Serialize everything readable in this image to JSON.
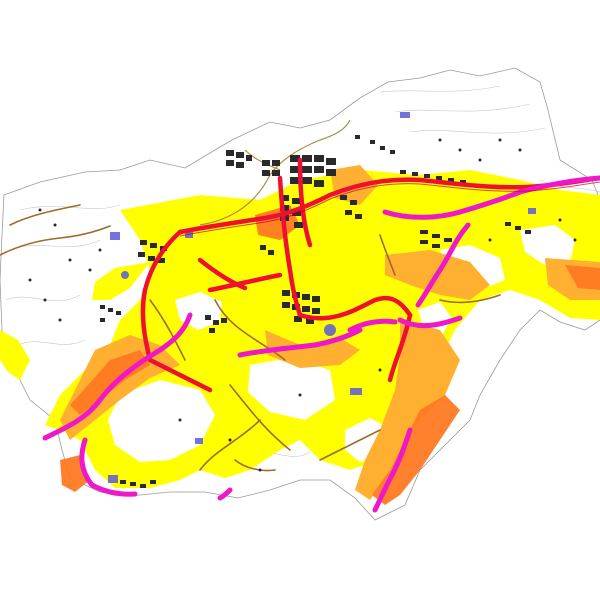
{
  "map": {
    "type": "strategic-noise-map",
    "labels_visible": false,
    "legend_visible": false,
    "colors": {
      "background": "#ffffff",
      "outline": "#9a9a9a",
      "contour": "#c8c8c8",
      "zone_yellow": "#ffff00",
      "zone_light_orange": "#ffc000",
      "zone_orange": "#ff9a3c",
      "zone_dark_orange": "#ff6a1a",
      "road_red": "#ee1030",
      "road_magenta": "#ee18c8",
      "road_stroke_dark": "#c0002a",
      "building": "#2a2a2a",
      "building_blue": "#5a5ad8",
      "street_brown": "#a06a2a"
    }
  }
}
